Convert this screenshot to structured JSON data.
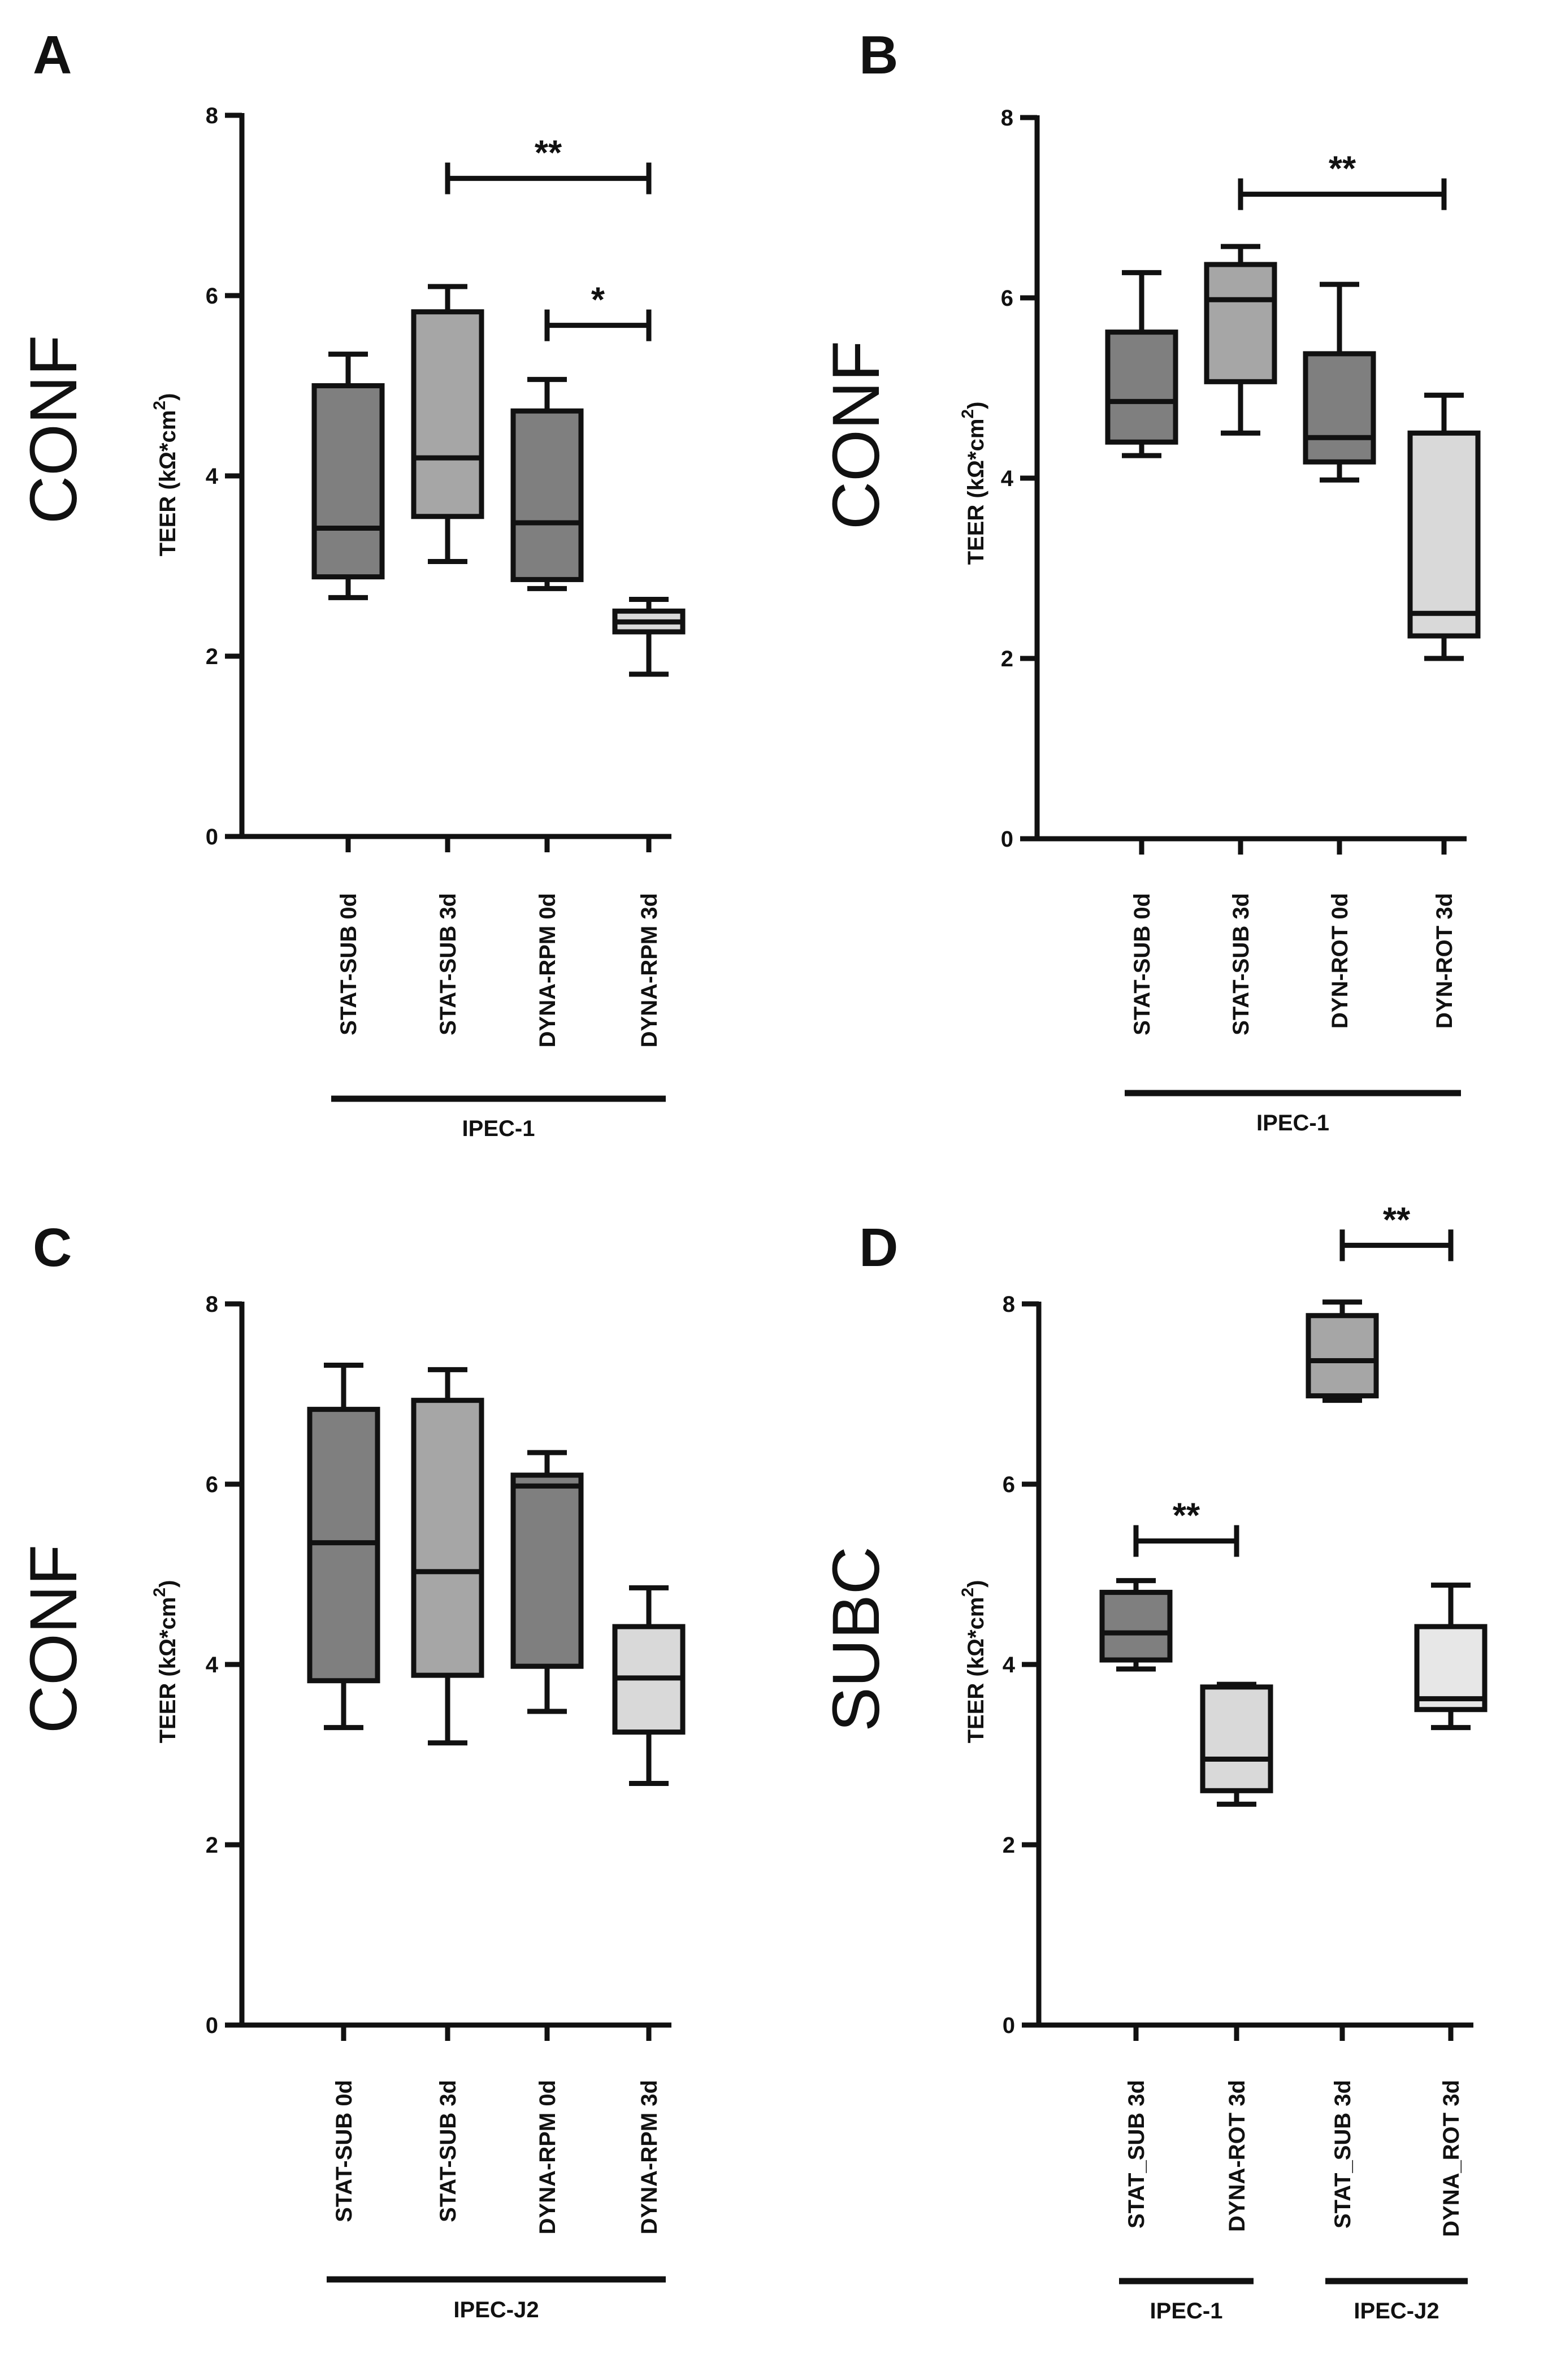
{
  "chart_data": [
    {
      "panel": "A",
      "type": "box",
      "row_label": "CONF",
      "ylabel": "TEER (kΩ*cm²)",
      "ylabel_parts": [
        "TEER (kΩ*cm",
        "2",
        ")"
      ],
      "ylim": [
        0,
        8
      ],
      "yticks": [
        "0",
        "2",
        "4",
        "6",
        "8"
      ],
      "categories": [
        "STAT-SUB 0d",
        "STAT-SUB 3d",
        "DYNA-RPM 0d",
        "DYNA-RPM 3d"
      ],
      "boxes": [
        {
          "min": 2.65,
          "q1": 2.88,
          "median": 3.42,
          "q3": 5.0,
          "max": 5.35,
          "fill": "#7f7f7f"
        },
        {
          "min": 3.05,
          "q1": 3.55,
          "median": 4.2,
          "q3": 5.82,
          "max": 6.1,
          "fill": "#a6a6a6"
        },
        {
          "min": 2.75,
          "q1": 2.85,
          "median": 3.48,
          "q3": 4.72,
          "max": 5.07,
          "fill": "#7f7f7f"
        },
        {
          "min": 1.8,
          "q1": 2.27,
          "median": 2.38,
          "q3": 2.5,
          "max": 2.63,
          "fill": "#d9d9d9"
        }
      ],
      "groups": [
        {
          "label": "IPEC-1",
          "from": 0,
          "to": 3
        }
      ],
      "significance": [
        {
          "from": 1,
          "to": 3,
          "y": 7.3,
          "label": "**"
        },
        {
          "from": 2,
          "to": 3,
          "y": 5.67,
          "label": "*"
        }
      ]
    },
    {
      "panel": "B",
      "type": "box",
      "row_label": "CONF",
      "ylabel": "TEER (kΩ*cm²)",
      "ylabel_parts": [
        "TEER (kΩ*cm",
        "2",
        ")"
      ],
      "ylim": [
        0,
        8
      ],
      "yticks": [
        "0",
        "2",
        "4",
        "6",
        "8"
      ],
      "categories": [
        "STAT-SUB 0d",
        "STAT-SUB 3d",
        "DYN-ROT 0d",
        "DYN-ROT 3d"
      ],
      "boxes": [
        {
          "min": 4.25,
          "q1": 4.4,
          "median": 4.85,
          "q3": 5.62,
          "max": 6.28,
          "fill": "#7f7f7f"
        },
        {
          "min": 4.5,
          "q1": 5.07,
          "median": 5.98,
          "q3": 6.37,
          "max": 6.57,
          "fill": "#a6a6a6"
        },
        {
          "min": 3.98,
          "q1": 4.18,
          "median": 4.45,
          "q3": 5.38,
          "max": 6.15,
          "fill": "#7f7f7f"
        },
        {
          "min": 2.0,
          "q1": 2.25,
          "median": 2.5,
          "q3": 4.5,
          "max": 4.92,
          "fill": "#d9d9d9"
        }
      ],
      "groups": [
        {
          "label": "IPEC-1",
          "from": 0,
          "to": 3
        }
      ],
      "significance": [
        {
          "from": 1,
          "to": 3,
          "y": 7.15,
          "label": "**"
        }
      ]
    },
    {
      "panel": "C",
      "type": "box",
      "row_label": "CONF",
      "ylabel": "TEER (kΩ*cm²)",
      "ylabel_parts": [
        "TEER (kΩ*cm",
        "2",
        ")"
      ],
      "ylim": [
        0,
        8
      ],
      "yticks": [
        "0",
        "2",
        "4",
        "6",
        "8"
      ],
      "categories": [
        "STAT-SUB 0d",
        "STAT-SUB 3d",
        "DYNA-RPM 0d",
        "DYNA-RPM 3d"
      ],
      "boxes": [
        {
          "min": 3.3,
          "q1": 3.82,
          "median": 5.35,
          "q3": 6.83,
          "max": 7.32,
          "fill": "#7f7f7f"
        },
        {
          "min": 3.13,
          "q1": 3.88,
          "median": 5.03,
          "q3": 6.93,
          "max": 7.27,
          "fill": "#a6a6a6"
        },
        {
          "min": 3.48,
          "q1": 3.98,
          "median": 5.98,
          "q3": 6.1,
          "max": 6.35,
          "fill": "#7f7f7f"
        },
        {
          "min": 2.68,
          "q1": 3.25,
          "median": 3.85,
          "q3": 4.42,
          "max": 4.85,
          "fill": "#d9d9d9"
        }
      ],
      "groups": [
        {
          "label": "IPEC-J2",
          "from": 0,
          "to": 3
        }
      ],
      "significance": []
    },
    {
      "panel": "D",
      "type": "box",
      "row_label": "SUBC",
      "ylabel": "TEER (kΩ*cm²)",
      "ylabel_parts": [
        "TEER (kΩ*cm",
        "2",
        ")"
      ],
      "ylim": [
        0,
        8
      ],
      "yticks": [
        "0",
        "2",
        "4",
        "6",
        "8"
      ],
      "categories": [
        "STAT_SUB 3d",
        "DYNA-ROT 3d",
        "STAT_SUB 3d",
        "DYNA_ROT 3d"
      ],
      "boxes": [
        {
          "min": 3.95,
          "q1": 4.05,
          "median": 4.35,
          "q3": 4.8,
          "max": 4.93,
          "fill": "#7f7f7f"
        },
        {
          "min": 2.45,
          "q1": 2.6,
          "median": 2.95,
          "q3": 3.75,
          "max": 3.78,
          "fill": "#d9d9d9"
        },
        {
          "min": 6.93,
          "q1": 6.98,
          "median": 7.37,
          "q3": 7.87,
          "max": 8.02,
          "fill": "#a6a6a6"
        },
        {
          "min": 3.3,
          "q1": 3.5,
          "median": 3.62,
          "q3": 4.42,
          "max": 4.88,
          "fill": "#e7e7e7"
        }
      ],
      "groups": [
        {
          "label": "IPEC-1",
          "from": 0,
          "to": 1
        },
        {
          "label": "IPEC-J2",
          "from": 2,
          "to": 3
        }
      ],
      "significance": [
        {
          "from": 0,
          "to": 1,
          "y": 5.37,
          "label": "**"
        },
        {
          "from": 2,
          "to": 3,
          "y": 8.65,
          "label": "**"
        }
      ]
    }
  ]
}
